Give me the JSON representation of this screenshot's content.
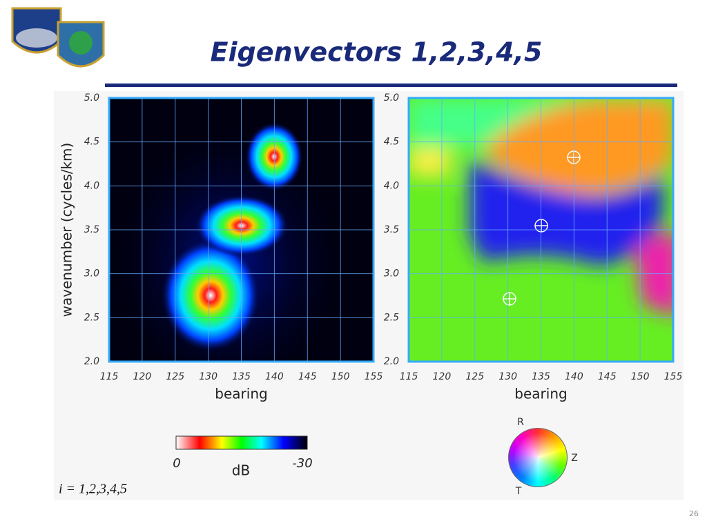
{
  "title": "Eigenvectors 1,2,3,4,5",
  "plots": [
    {
      "ylabel": "wavenumber (cycles/km)",
      "xlabel": "bearing",
      "xticks": [
        "115",
        "120",
        "125",
        "130",
        "135",
        "140",
        "145",
        "150",
        "155"
      ],
      "yticks": [
        "5.0",
        "4.5",
        "4.0",
        "3.5",
        "3.0",
        "2.5",
        "2.0"
      ]
    },
    {
      "xlabel": "bearing",
      "xticks": [
        "115",
        "120",
        "125",
        "130",
        "135",
        "140",
        "145",
        "150",
        "155"
      ],
      "yticks": [
        "5.0",
        "4.5",
        "4.0",
        "3.5",
        "3.0",
        "2.5",
        "2.0"
      ]
    }
  ],
  "colorbar": {
    "min_label": "0",
    "unit": "dB",
    "max_label": "-30"
  },
  "wheel": {
    "labels": [
      "R",
      "Z",
      "T"
    ]
  },
  "caption": "i = 1,2,3,4,5",
  "page_number": "26"
}
